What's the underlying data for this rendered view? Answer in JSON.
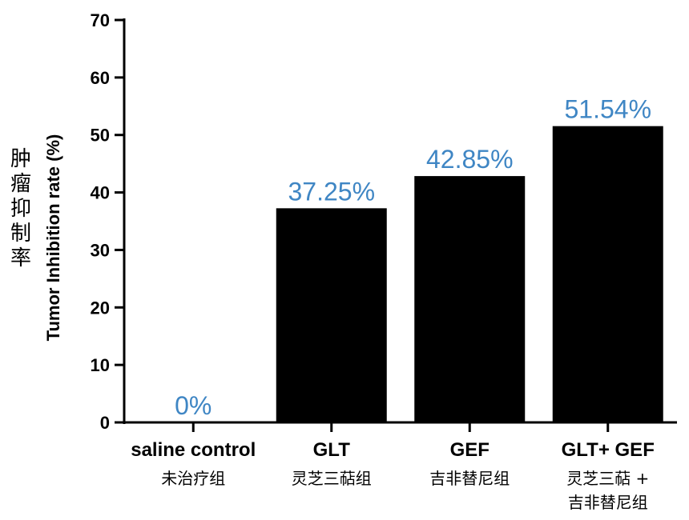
{
  "chart_data": {
    "type": "bar",
    "categories": [
      {
        "en": "saline control",
        "zh": [
          "未治疗组"
        ]
      },
      {
        "en": "GLT",
        "zh": [
          "灵芝三萜组"
        ]
      },
      {
        "en": "GEF",
        "zh": [
          "吉非替尼组"
        ]
      },
      {
        "en": "GLT+ GEF",
        "zh": [
          "灵芝三萜 +",
          "吉非替尼组"
        ]
      }
    ],
    "values": [
      0,
      37.25,
      42.85,
      51.54
    ],
    "value_labels": [
      "0%",
      "37.25%",
      "42.85%",
      "51.54%"
    ],
    "ylabel": "Tumor Inhibition rate (%)",
    "ylabel_zh": [
      "肿",
      "瘤",
      "抑",
      "制",
      "率"
    ],
    "ylim": [
      0,
      70
    ],
    "yticks": [
      0,
      10,
      20,
      30,
      40,
      50,
      60,
      70
    ],
    "grid": false,
    "colors": {
      "bar": "#000000",
      "value_label": "#3f86c4",
      "axis": "#000000"
    }
  }
}
